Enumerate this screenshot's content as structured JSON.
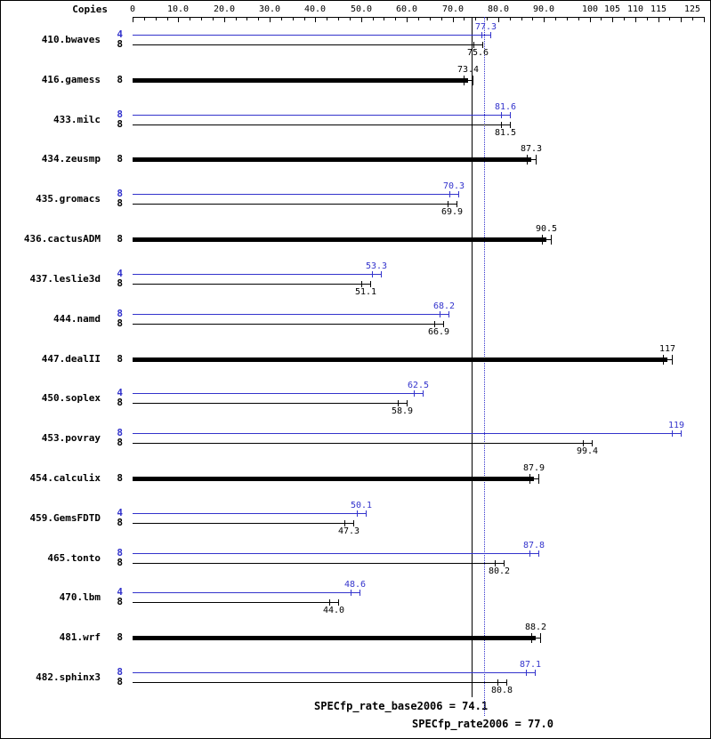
{
  "header": {
    "copies_label": "Copies"
  },
  "axis": {
    "max": 125,
    "minor_step": 2.5,
    "major_ticks": [
      0,
      10,
      20,
      30,
      40,
      50,
      60,
      70,
      80,
      90,
      100,
      105,
      110,
      115,
      120,
      125
    ],
    "ticks": [
      {
        "value": 0,
        "label": "0"
      },
      {
        "value": 10,
        "label": "10.0"
      },
      {
        "value": 20,
        "label": "20.0"
      },
      {
        "value": 30,
        "label": "30.0"
      },
      {
        "value": 40,
        "label": "40.0"
      },
      {
        "value": 50,
        "label": "50.0"
      },
      {
        "value": 60,
        "label": "60.0"
      },
      {
        "value": 70,
        "label": "70.0"
      },
      {
        "value": 80,
        "label": "80.0"
      },
      {
        "value": 90,
        "label": "90.0"
      },
      {
        "value": 100,
        "label": "100"
      },
      {
        "value": 105,
        "label": "105"
      },
      {
        "value": 110,
        "label": "110"
      },
      {
        "value": 115,
        "label": "115"
      },
      {
        "value": 125,
        "label": "125"
      }
    ]
  },
  "chart_data": {
    "type": "bar",
    "orientation": "horizontal",
    "xlim": [
      0,
      125
    ],
    "series_colors": {
      "peak": "#3333cc",
      "base": "#000000"
    },
    "benchmarks": [
      {
        "name": "410.bwaves",
        "bars": [
          {
            "copies": "4",
            "series": "peak",
            "value": 77.3,
            "label": "77.3"
          },
          {
            "copies": "8",
            "series": "base",
            "value": 75.6,
            "label": "75.6"
          }
        ]
      },
      {
        "name": "416.gamess",
        "bars": [
          {
            "copies": "8",
            "series": "base",
            "value": 73.4,
            "label": "73.4",
            "thick": true
          }
        ]
      },
      {
        "name": "433.milc",
        "bars": [
          {
            "copies": "8",
            "series": "peak",
            "value": 81.6,
            "label": "81.6"
          },
          {
            "copies": "8",
            "series": "base",
            "value": 81.5,
            "label": "81.5"
          }
        ]
      },
      {
        "name": "434.zeusmp",
        "bars": [
          {
            "copies": "8",
            "series": "base",
            "value": 87.3,
            "label": "87.3",
            "thick": true
          }
        ]
      },
      {
        "name": "435.gromacs",
        "bars": [
          {
            "copies": "8",
            "series": "peak",
            "value": 70.3,
            "label": "70.3"
          },
          {
            "copies": "8",
            "series": "base",
            "value": 69.9,
            "label": "69.9"
          }
        ]
      },
      {
        "name": "436.cactusADM",
        "bars": [
          {
            "copies": "8",
            "series": "base",
            "value": 90.5,
            "label": "90.5",
            "thick": true
          }
        ]
      },
      {
        "name": "437.leslie3d",
        "bars": [
          {
            "copies": "4",
            "series": "peak",
            "value": 53.3,
            "label": "53.3"
          },
          {
            "copies": "8",
            "series": "base",
            "value": 51.1,
            "label": "51.1"
          }
        ]
      },
      {
        "name": "444.namd",
        "bars": [
          {
            "copies": "8",
            "series": "peak",
            "value": 68.2,
            "label": "68.2"
          },
          {
            "copies": "8",
            "series": "base",
            "value": 66.9,
            "label": "66.9"
          }
        ]
      },
      {
        "name": "447.dealII",
        "bars": [
          {
            "copies": "8",
            "series": "base",
            "value": 117,
            "label": "117",
            "thick": true
          }
        ]
      },
      {
        "name": "450.soplex",
        "bars": [
          {
            "copies": "4",
            "series": "peak",
            "value": 62.5,
            "label": "62.5"
          },
          {
            "copies": "8",
            "series": "base",
            "value": 58.9,
            "label": "58.9"
          }
        ]
      },
      {
        "name": "453.povray",
        "bars": [
          {
            "copies": "8",
            "series": "peak",
            "value": 119,
            "label": "119"
          },
          {
            "copies": "8",
            "series": "base",
            "value": 99.4,
            "label": "99.4"
          }
        ]
      },
      {
        "name": "454.calculix",
        "bars": [
          {
            "copies": "8",
            "series": "base",
            "value": 87.9,
            "label": "87.9",
            "thick": true
          }
        ]
      },
      {
        "name": "459.GemsFDTD",
        "bars": [
          {
            "copies": "4",
            "series": "peak",
            "value": 50.1,
            "label": "50.1"
          },
          {
            "copies": "8",
            "series": "base",
            "value": 47.3,
            "label": "47.3"
          }
        ]
      },
      {
        "name": "465.tonto",
        "bars": [
          {
            "copies": "8",
            "series": "peak",
            "value": 87.8,
            "label": "87.8"
          },
          {
            "copies": "8",
            "series": "base",
            "value": 80.2,
            "label": "80.2"
          }
        ]
      },
      {
        "name": "470.lbm",
        "bars": [
          {
            "copies": "4",
            "series": "peak",
            "value": 48.6,
            "label": "48.6"
          },
          {
            "copies": "8",
            "series": "base",
            "value": 44.0,
            "label": "44.0"
          }
        ]
      },
      {
        "name": "481.wrf",
        "bars": [
          {
            "copies": "8",
            "series": "base",
            "value": 88.2,
            "label": "88.2",
            "thick": true
          }
        ]
      },
      {
        "name": "482.sphinx3",
        "bars": [
          {
            "copies": "8",
            "series": "peak",
            "value": 87.1,
            "label": "87.1"
          },
          {
            "copies": "8",
            "series": "base",
            "value": 80.8,
            "label": "80.8"
          }
        ]
      }
    ],
    "reference_lines": [
      {
        "name": "base",
        "value": 74.1,
        "style": "solid",
        "color": "#000000"
      },
      {
        "name": "peak",
        "value": 77.0,
        "style": "dotted",
        "color": "#3333cc"
      }
    ]
  },
  "footer": {
    "base_label": "SPECfp_rate_base2006 = 74.1",
    "peak_label": "SPECfp_rate2006 = 77.0"
  }
}
